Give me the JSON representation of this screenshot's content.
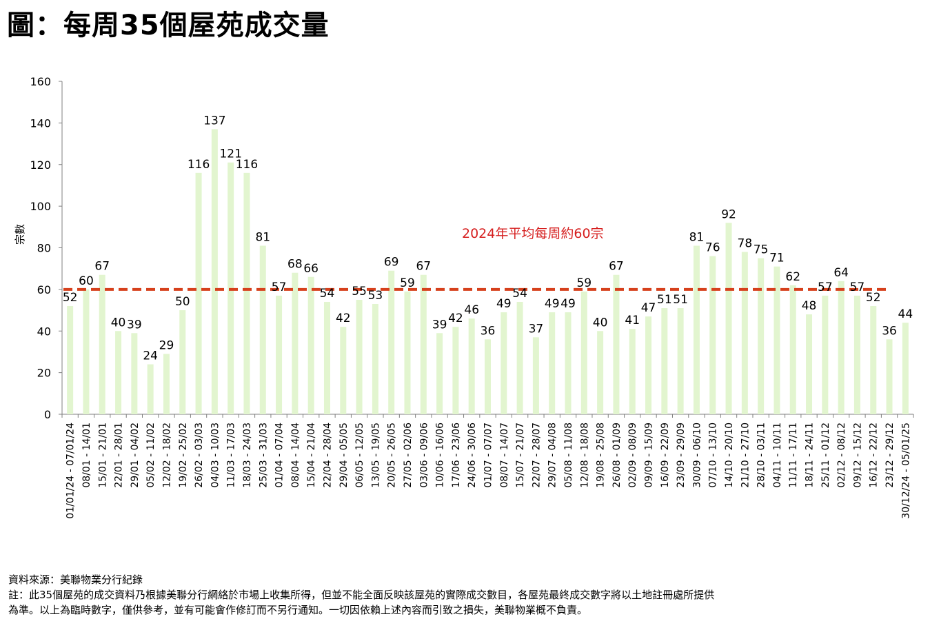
{
  "title": "圖：每周35個屋苑成交量",
  "chart_data": {
    "type": "bar",
    "ylabel": "宗數",
    "ylim": [
      0,
      160
    ],
    "yticks": [
      0,
      20,
      40,
      60,
      80,
      100,
      120,
      140,
      160
    ],
    "categories": [
      "01/01/24 - 07/01/24",
      "08/01 - 14/01",
      "15/01 - 21/01",
      "22/01 - 28/01",
      "29/01 - 04/02",
      "05/02 - 11/02",
      "12/02 - 18/02",
      "19/02 - 25/02",
      "26/02 - 03/03",
      "04/03 - 10/03",
      "11/03 - 17/03",
      "18/03 - 24/03",
      "25/03 - 31/03",
      "01/04 - 07/04",
      "08/04 - 14/04",
      "15/04 - 21/04",
      "22/04 - 28/04",
      "29/04 - 05/05",
      "06/05 - 12/05",
      "13/05 - 19/05",
      "20/05 - 26/05",
      "27/05 - 02/06",
      "03/06 - 09/06",
      "10/06 - 16/06",
      "17/06 - 23/06",
      "24/06 - 30/06",
      "01/07 - 07/07",
      "08/07 - 14/07",
      "15/07 - 21/07",
      "22/07 - 28/07",
      "29/07 - 04/08",
      "05/08 - 11/08",
      "12/08 - 18/08",
      "19/08 - 25/08",
      "26/08 - 01/09",
      "02/09 - 08/09",
      "09/09 - 15/09",
      "16/09 - 22/09",
      "23/09 - 29/09",
      "30/09 - 06/10",
      "07/10 - 13/10",
      "14/10 - 20/10",
      "21/10 - 27/10",
      "28/10 - 03/11",
      "04/11 - 10/11",
      "11/11 - 17/11",
      "18/11 - 24/11",
      "25/11 - 01/12",
      "02/12 - 08/12",
      "09/12 - 15/12",
      "16/12 - 22/12",
      "23/12 - 29/12",
      "30/12/24 - 05/01/25"
    ],
    "values": [
      52,
      60,
      67,
      40,
      39,
      24,
      29,
      50,
      116,
      137,
      121,
      116,
      81,
      57,
      68,
      66,
      54,
      42,
      55,
      53,
      69,
      59,
      67,
      39,
      42,
      46,
      36,
      49,
      54,
      37,
      49,
      49,
      59,
      40,
      67,
      41,
      47,
      51,
      51,
      81,
      76,
      92,
      78,
      75,
      71,
      62,
      48,
      57,
      64,
      57,
      52,
      36,
      44
    ],
    "average_line": {
      "value": 60,
      "label": "2024年平均每周約60宗"
    },
    "grid": false,
    "colors": {
      "bar": "#e2f5cf",
      "average_line": "#d6401c",
      "average_label": "#d61f1f",
      "axis": "#7f7f7f"
    }
  },
  "footer": {
    "source": "資料來源：美聯物業分行紀錄",
    "note_line1": "註：此35個屋苑的成交資料乃根據美聯分行網絡於市場上收集所得，但並不能全面反映該屋苑的實際成交數目，各屋苑最終成交數字將以土地註冊處所提供",
    "note_line2": "為準。以上為臨時數字，僅供參考，並有可能會作修訂而不另行通知。一切因依賴上述內容而引致之損失，美聯物業概不負責。"
  }
}
